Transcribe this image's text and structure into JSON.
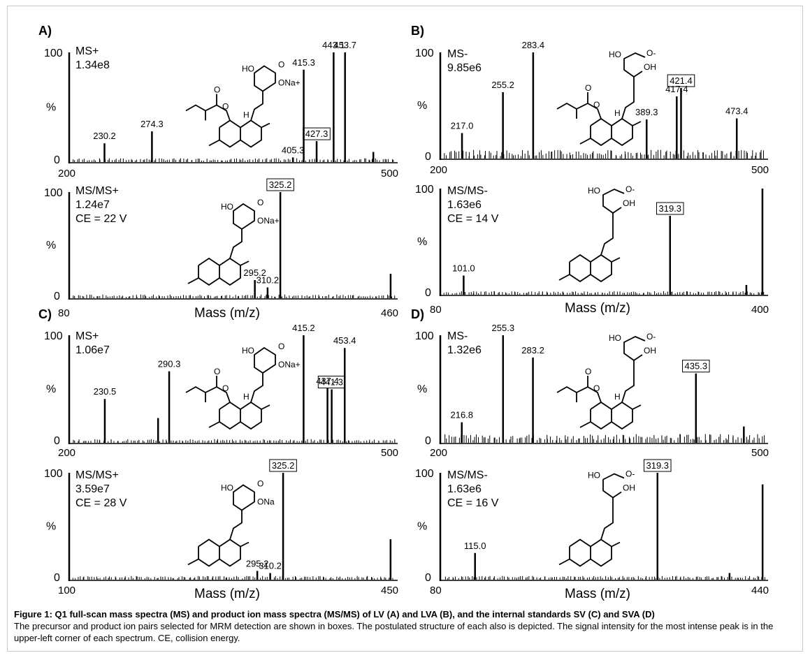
{
  "chart_data": [
    {
      "type": "bar",
      "panel_label": "A)",
      "mode": "MS+",
      "intensity": "1.34e8",
      "xlim": [
        200,
        500
      ],
      "xticks": [
        "200",
        "500"
      ],
      "yticks": [
        "100",
        "%",
        "0"
      ],
      "peaks": [
        {
          "mz": 230.2,
          "rel": 16
        },
        {
          "mz": 274.3,
          "rel": 27
        },
        {
          "mz": 405.3,
          "rel": 3
        },
        {
          "mz": 415.3,
          "rel": 84
        },
        {
          "mz": 427.3,
          "rel": 18
        },
        {
          "mz": 443.1,
          "rel": 100
        },
        {
          "mz": 453.7,
          "rel": 100
        },
        {
          "mz": 480,
          "rel": 8
        }
      ],
      "labels": [
        {
          "mz": 230.2,
          "text": "230.2",
          "boxed": false
        },
        {
          "mz": 274.3,
          "text": "274.3",
          "boxed": false
        },
        {
          "mz": 405.3,
          "text": "405.3",
          "boxed": false
        },
        {
          "mz": 415.3,
          "text": "415.3",
          "boxed": false
        },
        {
          "mz": 427.3,
          "text": "427.3",
          "boxed": true
        },
        {
          "mz": 443.1,
          "text": "443.1",
          "boxed": false
        },
        {
          "mz": 453.7,
          "text": "453.7",
          "boxed": false
        }
      ],
      "structure_note": "ONa+"
    },
    {
      "type": "bar",
      "panel_label": "",
      "mode": "MS/MS+",
      "intensity": "1.24e7",
      "ce": "CE = 22 V",
      "xlim": [
        80,
        460
      ],
      "xticks": [
        "80",
        "460"
      ],
      "xlabel": "Mass (m/z)",
      "yticks": [
        "100",
        "%",
        "0"
      ],
      "peaks": [
        {
          "mz": 295.2,
          "rel": 16
        },
        {
          "mz": 310.2,
          "rel": 9
        },
        {
          "mz": 325.2,
          "rel": 100
        },
        {
          "mz": 455,
          "rel": 22
        }
      ],
      "labels": [
        {
          "mz": 295.2,
          "text": "295.2",
          "boxed": false
        },
        {
          "mz": 310.2,
          "text": "310.2",
          "boxed": false
        },
        {
          "mz": 325.2,
          "text": "325.2",
          "boxed": true
        }
      ],
      "structure_note": "ONa+"
    },
    {
      "type": "bar",
      "panel_label": "B)",
      "mode": "MS-",
      "intensity": "9.85e6",
      "xlim": [
        200,
        500
      ],
      "xticks": [
        "200",
        "500"
      ],
      "yticks": [
        "100",
        "%",
        "0"
      ],
      "peaks": [
        {
          "mz": 217.0,
          "rel": 23
        },
        {
          "mz": 255.2,
          "rel": 62
        },
        {
          "mz": 283.4,
          "rel": 100
        },
        {
          "mz": 389.3,
          "rel": 36
        },
        {
          "mz": 417.4,
          "rel": 58
        },
        {
          "mz": 421.4,
          "rel": 66
        },
        {
          "mz": 473.4,
          "rel": 37
        }
      ],
      "labels": [
        {
          "mz": 217.0,
          "text": "217.0",
          "boxed": false
        },
        {
          "mz": 255.2,
          "text": "255.2",
          "boxed": false
        },
        {
          "mz": 283.4,
          "text": "283.4",
          "boxed": false
        },
        {
          "mz": 389.3,
          "text": "389.3",
          "boxed": false
        },
        {
          "mz": 417.4,
          "text": "417.4",
          "boxed": false
        },
        {
          "mz": 421.4,
          "text": "421.4",
          "boxed": true
        },
        {
          "mz": 473.4,
          "text": "473.4",
          "boxed": false
        }
      ],
      "structure_note": "O-"
    },
    {
      "type": "bar",
      "panel_label": "",
      "mode": "MS/MS-",
      "intensity": "1.63e6",
      "ce": "CE = 14 V",
      "xlim": [
        80,
        420
      ],
      "xticks": [
        "80",
        "400"
      ],
      "xlabel": "Mass (m/z)",
      "yticks": [
        "100",
        "%",
        "0"
      ],
      "peaks": [
        {
          "mz": 101.0,
          "rel": 17
        },
        {
          "mz": 319.3,
          "rel": 74
        },
        {
          "mz": 400,
          "rel": 8
        },
        {
          "mz": 417,
          "rel": 100
        }
      ],
      "labels": [
        {
          "mz": 101.0,
          "text": "101.0",
          "boxed": false
        },
        {
          "mz": 319.3,
          "text": "319.3",
          "boxed": true
        }
      ],
      "structure_note": "O-"
    },
    {
      "type": "bar",
      "panel_label": "C)",
      "mode": "MS+",
      "intensity": "1.06e7",
      "xlim": [
        200,
        500
      ],
      "xticks": [
        "200",
        "500"
      ],
      "yticks": [
        "100",
        "%",
        "0"
      ],
      "peaks": [
        {
          "mz": 230.5,
          "rel": 40
        },
        {
          "mz": 280,
          "rel": 22
        },
        {
          "mz": 290.3,
          "rel": 66
        },
        {
          "mz": 415.2,
          "rel": 100
        },
        {
          "mz": 437.4,
          "rel": 50
        },
        {
          "mz": 441.3,
          "rel": 49
        },
        {
          "mz": 453.4,
          "rel": 88
        }
      ],
      "labels": [
        {
          "mz": 230.5,
          "text": "230.5",
          "boxed": false
        },
        {
          "mz": 290.3,
          "text": "290.3",
          "boxed": false
        },
        {
          "mz": 415.2,
          "text": "415.2",
          "boxed": false
        },
        {
          "mz": 437.4,
          "text": "437.4",
          "boxed": false
        },
        {
          "mz": 441.3,
          "text": "441.3",
          "boxed": true
        },
        {
          "mz": 453.4,
          "text": "453.4",
          "boxed": false
        }
      ],
      "structure_note": "ONa+"
    },
    {
      "type": "bar",
      "panel_label": "",
      "mode": "MS/MS+",
      "intensity": "3.59e7",
      "ce": "CE = 28 V",
      "xlim": [
        80,
        455
      ],
      "xticks": [
        "100",
        "450"
      ],
      "xlabel": "Mass (m/z)",
      "yticks": [
        "100",
        "%",
        "0"
      ],
      "peaks": [
        {
          "mz": 295.2,
          "rel": 7
        },
        {
          "mz": 310.2,
          "rel": 5
        },
        {
          "mz": 325.2,
          "rel": 100
        },
        {
          "mz": 450,
          "rel": 37
        }
      ],
      "labels": [
        {
          "mz": 295.2,
          "text": "295.2",
          "boxed": false
        },
        {
          "mz": 310.2,
          "text": "310.2",
          "boxed": false
        },
        {
          "mz": 325.2,
          "text": "325.2",
          "boxed": true
        }
      ],
      "structure_note": "ONa"
    },
    {
      "type": "bar",
      "panel_label": "D)",
      "mode": "MS-",
      "intensity": "1.32e6",
      "xlim": [
        200,
        500
      ],
      "xticks": [
        "200",
        "500"
      ],
      "yticks": [
        "100",
        "%",
        "0"
      ],
      "peaks": [
        {
          "mz": 216.8,
          "rel": 18
        },
        {
          "mz": 255.3,
          "rel": 100
        },
        {
          "mz": 283.2,
          "rel": 79
        },
        {
          "mz": 435.3,
          "rel": 64
        },
        {
          "mz": 480,
          "rel": 14
        }
      ],
      "labels": [
        {
          "mz": 216.8,
          "text": "216.8",
          "boxed": false
        },
        {
          "mz": 255.3,
          "text": "255.3",
          "boxed": false
        },
        {
          "mz": 283.2,
          "text": "283.2",
          "boxed": false
        },
        {
          "mz": 435.3,
          "text": "435.3",
          "boxed": true
        }
      ],
      "structure_note": "O-"
    },
    {
      "type": "bar",
      "panel_label": "",
      "mode": "MS/MS-",
      "intensity": "1.63e6",
      "ce": "CE = 16 V",
      "xlim": [
        80,
        440
      ],
      "xticks": [
        "80",
        "440"
      ],
      "xlabel": "Mass (m/z)",
      "yticks": [
        "100",
        "%",
        "0"
      ],
      "peaks": [
        {
          "mz": 115.0,
          "rel": 24
        },
        {
          "mz": 319.3,
          "rel": 100
        },
        {
          "mz": 400,
          "rel": 5
        },
        {
          "mz": 437,
          "rel": 89
        }
      ],
      "labels": [
        {
          "mz": 115.0,
          "text": "115.0",
          "boxed": false
        },
        {
          "mz": 319.3,
          "text": "319.3",
          "boxed": true
        }
      ],
      "structure_note": "O-"
    }
  ],
  "structure_text": {
    "ho": "HO",
    "oh": "OH",
    "h": "H",
    "o": "O",
    "ona_plus": "ONa+",
    "ona": "ONa",
    "plus": "+",
    "o_minus": "O-"
  },
  "caption": {
    "title": "Figure 1: Q1 full-scan mass spectra (MS) and product ion mass spectra (MS/MS) of LV (A) and LVA (B), and the internal standards SV (C) and SVA (D)",
    "body": "The precursor and product ion pairs selected for MRM detection are shown in boxes. The postulated structure of each also is depicted. The signal intensity for the most intense peak is in the upper-left corner of each spectrum. CE, collision energy."
  }
}
